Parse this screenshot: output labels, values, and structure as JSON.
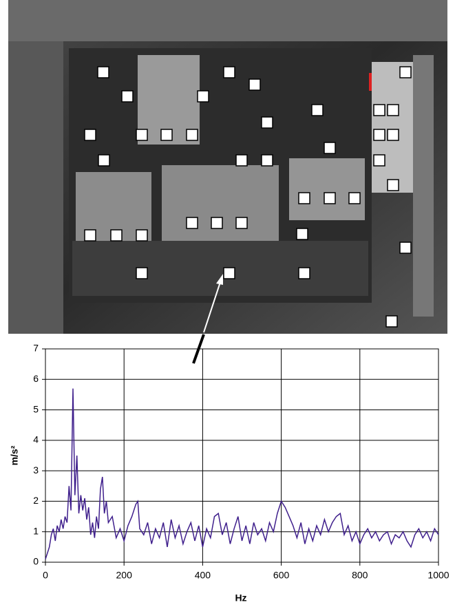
{
  "chart_data": {
    "type": "line",
    "xlabel": "Hz",
    "ylabel": "m/s²",
    "x": [
      0,
      5,
      10,
      15,
      20,
      25,
      30,
      35,
      40,
      45,
      50,
      55,
      60,
      65,
      70,
      75,
      80,
      85,
      90,
      95,
      100,
      105,
      110,
      115,
      120,
      125,
      130,
      135,
      140,
      145,
      150,
      155,
      160,
      170,
      180,
      190,
      200,
      210,
      220,
      230,
      235,
      240,
      250,
      260,
      270,
      280,
      290,
      300,
      310,
      320,
      330,
      340,
      350,
      360,
      370,
      380,
      390,
      400,
      410,
      420,
      430,
      440,
      450,
      460,
      470,
      480,
      490,
      500,
      510,
      520,
      530,
      540,
      550,
      560,
      570,
      580,
      590,
      600,
      610,
      620,
      630,
      640,
      650,
      660,
      670,
      680,
      690,
      700,
      710,
      720,
      730,
      740,
      750,
      760,
      770,
      780,
      790,
      800,
      810,
      820,
      830,
      840,
      850,
      860,
      870,
      880,
      890,
      900,
      910,
      920,
      930,
      940,
      950,
      960,
      970,
      980,
      990,
      1000
    ],
    "values": [
      0.1,
      0.3,
      0.5,
      0.9,
      1.1,
      0.7,
      1.2,
      1.0,
      1.4,
      1.1,
      1.5,
      1.3,
      2.5,
      1.7,
      5.7,
      2.2,
      3.5,
      1.6,
      2.2,
      1.7,
      2.1,
      1.4,
      1.8,
      0.9,
      1.3,
      0.8,
      1.5,
      1.1,
      2.4,
      2.8,
      1.6,
      2.0,
      1.3,
      1.5,
      0.8,
      1.1,
      0.7,
      1.2,
      1.5,
      1.9,
      2.0,
      1.1,
      0.9,
      1.3,
      0.6,
      1.1,
      0.8,
      1.3,
      0.5,
      1.4,
      0.8,
      1.2,
      0.6,
      1.0,
      1.3,
      0.7,
      1.2,
      0.5,
      1.1,
      0.8,
      1.5,
      1.6,
      0.9,
      1.3,
      0.6,
      1.1,
      1.5,
      0.7,
      1.2,
      0.6,
      1.3,
      0.9,
      1.1,
      0.7,
      1.3,
      1.0,
      1.6,
      2.0,
      1.8,
      1.5,
      1.2,
      0.8,
      1.3,
      0.6,
      1.1,
      0.7,
      1.2,
      0.9,
      1.4,
      1.0,
      1.3,
      1.5,
      1.6,
      0.9,
      1.2,
      0.7,
      1.0,
      0.6,
      0.9,
      1.1,
      0.8,
      1.0,
      0.7,
      0.9,
      1.0,
      0.6,
      0.9,
      0.8,
      1.0,
      0.7,
      0.5,
      0.9,
      1.1,
      0.8,
      1.0,
      0.7,
      1.1,
      0.9
    ],
    "color": "#3f1f8c",
    "xlim": [
      0,
      1000
    ],
    "xticks": [
      0,
      200,
      400,
      600,
      800,
      1000
    ],
    "ylim": [
      0,
      7
    ],
    "yticks": [
      0,
      1,
      2,
      3,
      4,
      5,
      6,
      7
    ],
    "grid": true
  }
}
